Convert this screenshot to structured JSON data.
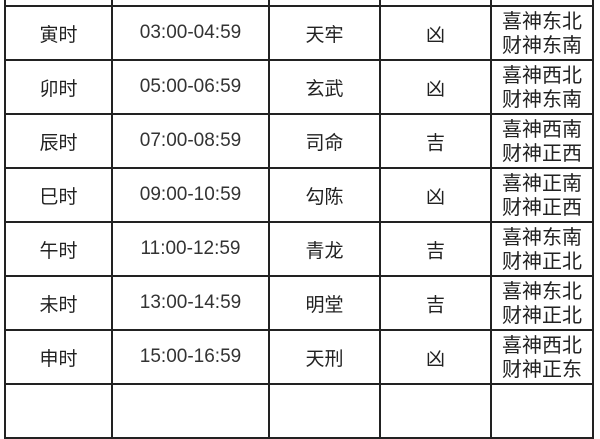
{
  "rows": [
    {
      "hour": "寅时",
      "time": "03:00-04:59",
      "star": "天牢",
      "luck": "凶",
      "xi": "喜神东北",
      "cai": "财神东南"
    },
    {
      "hour": "卯时",
      "time": "05:00-06:59",
      "star": "玄武",
      "luck": "凶",
      "xi": "喜神西北",
      "cai": "财神东南"
    },
    {
      "hour": "辰时",
      "time": "07:00-08:59",
      "star": "司命",
      "luck": "吉",
      "xi": "喜神西南",
      "cai": "财神正西"
    },
    {
      "hour": "巳时",
      "time": "09:00-10:59",
      "star": "勾陈",
      "luck": "凶",
      "xi": "喜神正南",
      "cai": "财神正西"
    },
    {
      "hour": "午时",
      "time": "11:00-12:59",
      "star": "青龙",
      "luck": "吉",
      "xi": "喜神东南",
      "cai": "财神正北"
    },
    {
      "hour": "未时",
      "time": "13:00-14:59",
      "star": "明堂",
      "luck": "吉",
      "xi": "喜神东北",
      "cai": "财神正北"
    },
    {
      "hour": "申时",
      "time": "15:00-16:59",
      "star": "天刑",
      "luck": "凶",
      "xi": "喜神西北",
      "cai": "财神正东"
    }
  ]
}
